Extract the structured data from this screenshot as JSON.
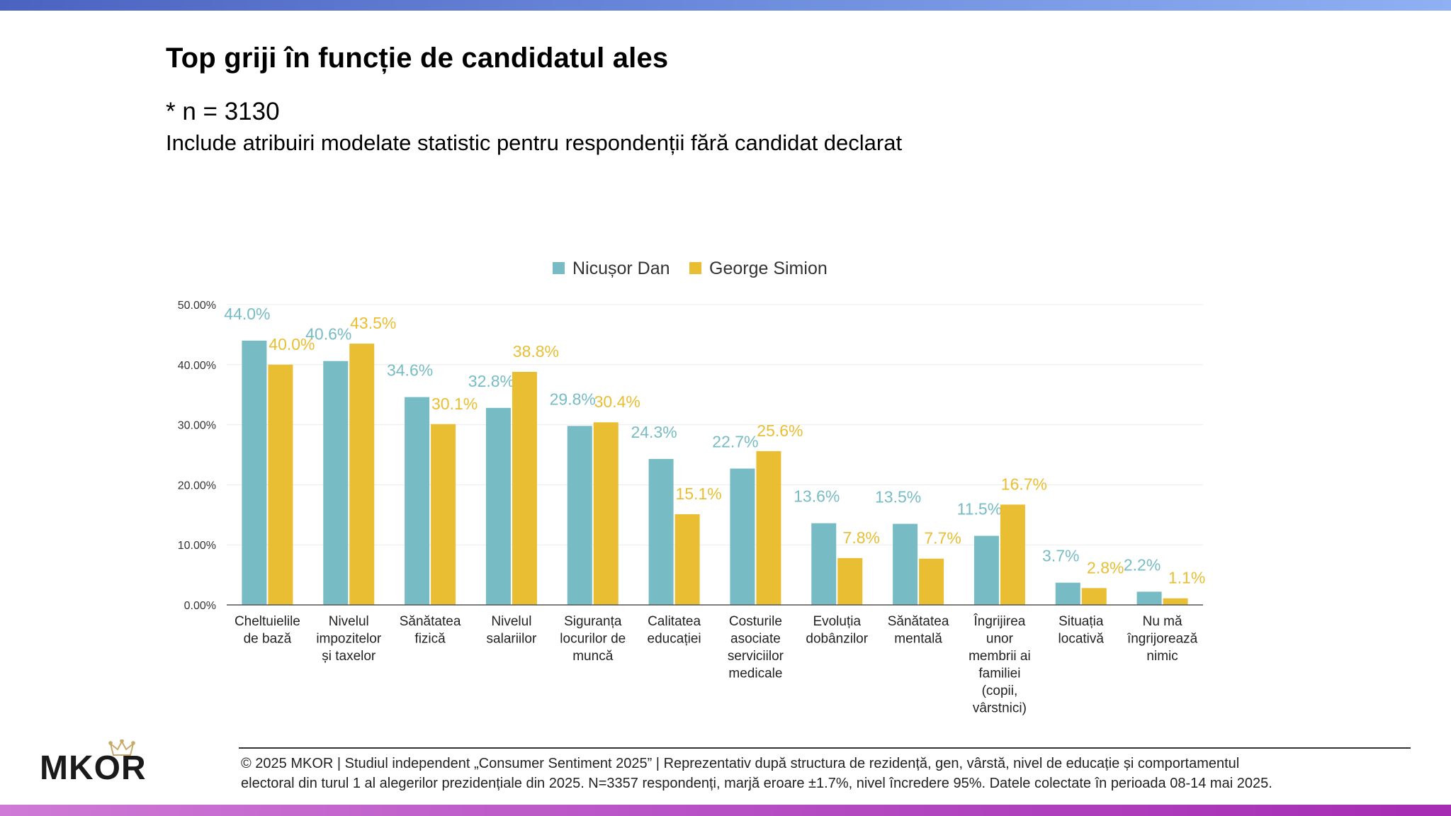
{
  "page": {
    "title": "Top griji în funcție de candidatul ales",
    "subtitle_n": "* n = 3130",
    "subtitle_note": "Include atribuiri modelate statistic pentru respondenții fără candidat declarat",
    "footer_line1": "© 2025 MKOR | Studiul independent „Consumer Sentiment 2025” | Reprezentativ după structura de rezidență, gen, vârstă, nivel de educație și comportamentul",
    "footer_line2": "electoral din turul 1 al alegerilor prezidențiale din 2025. N=3357 respondenți, marjă eroare ±1.7%, nivel încredere 95%. Datele colectate în perioada 08-14 mai 2025.",
    "logo": {
      "text": "MKOR",
      "icon": "crown-icon",
      "color": "#1a1a1a",
      "crown_color": "#c9a96a"
    },
    "colors": {
      "top_bar": "#5b74cf",
      "bottom_bar": "#b64fc4"
    }
  },
  "chart_data": {
    "type": "bar",
    "title": "Top griji în funcție de candidatul ales",
    "xlabel": "",
    "ylabel": "",
    "ylim": [
      0,
      50
    ],
    "yticks": [
      0,
      10,
      20,
      30,
      40,
      50
    ],
    "ytick_labels": [
      "0.00%",
      "10.00%",
      "20.00%",
      "30.00%",
      "40.00%",
      "50.00%"
    ],
    "grid": true,
    "legend_position": "top-center",
    "categories": [
      [
        "Cheltuielile",
        "de bază"
      ],
      [
        "Nivelul",
        "impozitelor",
        "și taxelor"
      ],
      [
        "Sănătatea",
        "fizică"
      ],
      [
        "Nivelul",
        "salariilor"
      ],
      [
        "Siguranța",
        "locurilor de",
        "muncă"
      ],
      [
        "Calitatea",
        "educației"
      ],
      [
        "Costurile",
        "asociate",
        "serviciilor",
        "medicale"
      ],
      [
        "Evoluția",
        "dobânzilor"
      ],
      [
        "Sănătatea",
        "mentală"
      ],
      [
        "Îngrijirea",
        "unor",
        "membrii ai",
        "familiei",
        "(copii,",
        "vârstnici)"
      ],
      [
        "Situația",
        "locativă"
      ],
      [
        "Nu mă",
        "îngrijorează",
        "nimic"
      ]
    ],
    "series": [
      {
        "name": "Nicușor Dan",
        "color": "#77bcc4",
        "values": [
          44.0,
          40.6,
          34.6,
          32.8,
          29.8,
          24.3,
          22.7,
          13.6,
          13.5,
          11.5,
          3.7,
          2.2
        ],
        "labels": [
          "44.0%",
          "40.6%",
          "34.6%",
          "32.8%",
          "29.8%",
          "24.3%",
          "22.7%",
          "13.6%",
          "13.5%",
          "11.5%",
          "3.7%",
          "2.2%"
        ]
      },
      {
        "name": "George Simion",
        "color": "#eabe33",
        "values": [
          40.0,
          43.5,
          30.1,
          38.8,
          30.4,
          15.1,
          25.6,
          7.8,
          7.7,
          16.7,
          2.8,
          1.1
        ],
        "labels": [
          "40.0%",
          "43.5%",
          "30.1%",
          "38.8%",
          "30.4%",
          "15.1%",
          "25.6%",
          "7.8%",
          "7.7%",
          "16.7%",
          "2.8%",
          "1.1%"
        ]
      }
    ]
  }
}
